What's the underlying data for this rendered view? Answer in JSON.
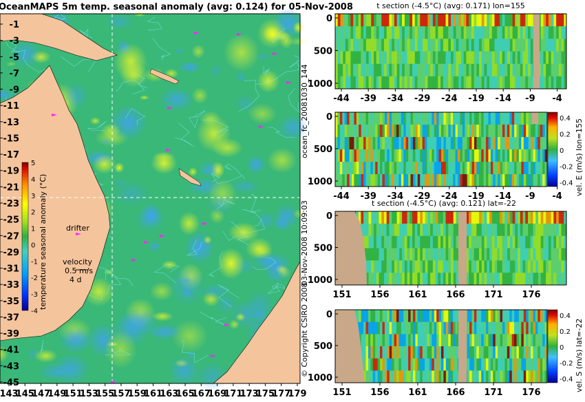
{
  "chart_data": [
    {
      "type": "heatmap",
      "title": "OceanMAPS 5m temp. seasonal anomaly (avg: 0.124) for 05-Nov-2008",
      "xticks": [
        "143",
        "145",
        "147",
        "149",
        "151",
        "153",
        "155",
        "157",
        "159",
        "161",
        "163",
        "165",
        "167",
        "169",
        "171",
        "173",
        "175",
        "177",
        "179"
      ],
      "yticks": [
        "-1",
        "-3",
        "-5",
        "-7",
        "-9",
        "-11",
        "-13",
        "-15",
        "-17",
        "-19",
        "-21",
        "-23",
        "-25",
        "-27",
        "-29",
        "-31",
        "-33",
        "-35",
        "-37",
        "-39",
        "-41",
        "-43",
        "-45"
      ],
      "xlim": [
        143,
        180
      ],
      "ylim": [
        -45,
        0
      ],
      "colorbar": {
        "label": "temperature seasonal anomaly (°C)",
        "ticks": [
          "5",
          "4",
          "3",
          "2",
          "1",
          "0",
          "-1",
          "-2",
          "-3",
          "-4"
        ]
      },
      "annotations": {
        "drifter": "drifter",
        "velocity": "velocity",
        "speed": "0.5 m/s",
        "days": "4 d"
      },
      "section_lines": {
        "lon": 155,
        "lat": -22
      }
    },
    {
      "type": "heatmap",
      "title": "t section (-4.5°C) (avg: 0.171) lon=155",
      "xticks": [
        "-44",
        "-39",
        "-34",
        "-29",
        "-24",
        "-19",
        "-14",
        "-9",
        "-4"
      ],
      "yticks": [
        "0",
        "500",
        "1000"
      ]
    },
    {
      "type": "heatmap",
      "title": "",
      "xticks": [
        "-44",
        "-39",
        "-34",
        "-29",
        "-24",
        "-19",
        "-14",
        "-9",
        "-4"
      ],
      "yticks": [
        "0",
        "500",
        "1000"
      ],
      "colorbar": {
        "label": "vel. E (m/s) lon=155",
        "ticks": [
          "0.4",
          "0.2",
          "0",
          "-0.2",
          "-0.4"
        ]
      }
    },
    {
      "type": "heatmap",
      "title": "t section (-4.5°C) (avg: 0.121) lat=-22",
      "xticks": [
        "151",
        "156",
        "161",
        "166",
        "171",
        "176"
      ],
      "yticks": [
        "0",
        "500",
        "1000"
      ]
    },
    {
      "type": "heatmap",
      "title": "",
      "xticks": [
        "151",
        "156",
        "161",
        "166",
        "171",
        "176"
      ],
      "yticks": [
        "0",
        "500",
        "1000"
      ],
      "colorbar": {
        "label": "vel. S (m/s) lat=-22",
        "ticks": [
          "0.4",
          "0.2",
          "0",
          "-0.2",
          "-0.4"
        ]
      }
    }
  ],
  "side_labels": {
    "model": "ocean_fc_20081030_144",
    "stamp": "03-Nov-2008 10:09:03",
    "copyright": "© Copyright CSIRO 2008"
  },
  "colors": {
    "land": "#f4c49c",
    "section_land": "#c8a888",
    "ocean_base": "#3ab878",
    "colormap": [
      "#000090",
      "#0030ff",
      "#00a0ff",
      "#40d0c0",
      "#60d070",
      "#30b040",
      "#a0e020",
      "#ffff00",
      "#ff9000",
      "#e01000",
      "#800000"
    ]
  }
}
